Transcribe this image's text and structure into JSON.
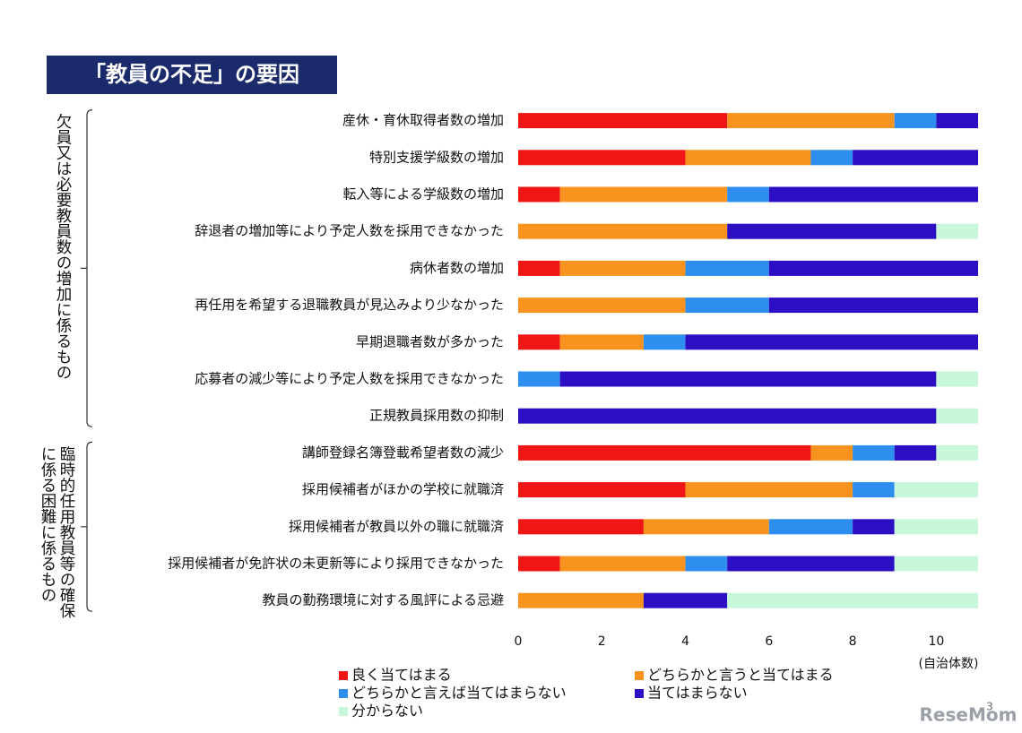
{
  "chart_data": {
    "type": "stacked_barh",
    "title": "「教員の不足」の要因",
    "x_unit_label": "(自治体数)",
    "categories": [
      "産休・育休取得者数の増加",
      "特別支援学級数の増加",
      "転入等による学級数の増加",
      "辞退者の増加等により予定人数を採用できなかった",
      "病休者数の増加",
      "再任用を希望する退職教員が見込みより少なかった",
      "早期退職者数が多かった",
      "応募者の減少等により予定人数を採用できなかった",
      "正規教員採用数の抑制",
      "講師登録名簿登載希望者数の減少",
      "採用候補者がほかの学校に就職済",
      "採用候補者が教員以外の職に就職済",
      "採用候補者が免許状の未更新等により採用できなかった",
      "教員の勤務環境に対する風評による忌避"
    ],
    "groups": [
      {
        "lines": [
          "欠員又は必要教員数の増加に係るもの"
        ],
        "start": 0,
        "end": 8
      },
      {
        "lines": [
          "臨時的任用教員等の確保",
          "に係る困難に係るもの"
        ],
        "start": 9,
        "end": 13
      }
    ],
    "series": [
      {
        "name": "良く当てはまる",
        "color": "#f01616",
        "values": [
          5,
          4,
          1,
          0,
          1,
          0,
          1,
          0,
          0,
          7,
          4,
          3,
          1,
          0
        ]
      },
      {
        "name": "どちらかと言うと当てはまる",
        "color": "#f7931e",
        "values": [
          4,
          3,
          4,
          5,
          3,
          4,
          2,
          0,
          0,
          1,
          4,
          3,
          3,
          3
        ]
      },
      {
        "name": "どちらかと言えば当てはまらない",
        "color": "#2d8ef0",
        "values": [
          1,
          1,
          1,
          0,
          2,
          2,
          1,
          1,
          0,
          1,
          1,
          2,
          1,
          0
        ]
      },
      {
        "name": "当てはまらない",
        "color": "#2c0fc2",
        "values": [
          1,
          3,
          5,
          5,
          5,
          5,
          7,
          9,
          10,
          1,
          0,
          1,
          4,
          2
        ]
      },
      {
        "name": "分からない",
        "color": "#c8f8da",
        "values": [
          0,
          0,
          0,
          1,
          0,
          0,
          0,
          1,
          1,
          1,
          2,
          2,
          2,
          6
        ]
      }
    ],
    "xlim": [
      0,
      11
    ],
    "xticks": [
      0,
      2,
      4,
      6,
      8,
      10
    ],
    "page_number": "3",
    "watermark": "ReseMom"
  }
}
